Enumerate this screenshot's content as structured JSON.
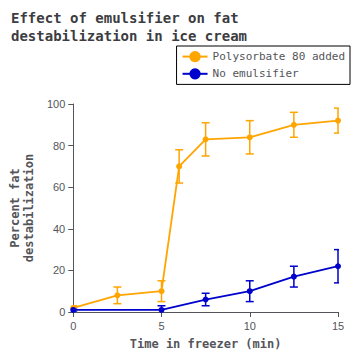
{
  "chart_data": {
    "type": "line",
    "title": "Effect of emulsifier on fat\ndestabilization in ice cream",
    "xlabel": "Time in freezer (min)",
    "ylabel": "Percent fat\ndestabilization",
    "xlim": [
      0,
      15
    ],
    "ylim": [
      0,
      100
    ],
    "xticks": [
      0,
      5,
      10,
      15
    ],
    "yticks": [
      0,
      20,
      40,
      60,
      80,
      100
    ],
    "grid": false,
    "legend": "upper right",
    "marker": "circle",
    "series": [
      {
        "name": "Polysorbate 80 added",
        "color": "#FFA500",
        "x": [
          0,
          2.5,
          5,
          6.0,
          7.5,
          10,
          12.5,
          15
        ],
        "values": [
          2,
          8,
          10,
          70,
          83,
          84,
          90,
          92
        ],
        "yerr": [
          1,
          4,
          5,
          8,
          8,
          8,
          6,
          6
        ]
      },
      {
        "name": "No emulsifier",
        "color": "#0000CC",
        "x": [
          0,
          5,
          7.5,
          10,
          12.5,
          15
        ],
        "values": [
          1,
          1,
          6,
          10,
          17,
          22
        ],
        "yerr": [
          1,
          2,
          3,
          5,
          5,
          8
        ]
      }
    ]
  }
}
